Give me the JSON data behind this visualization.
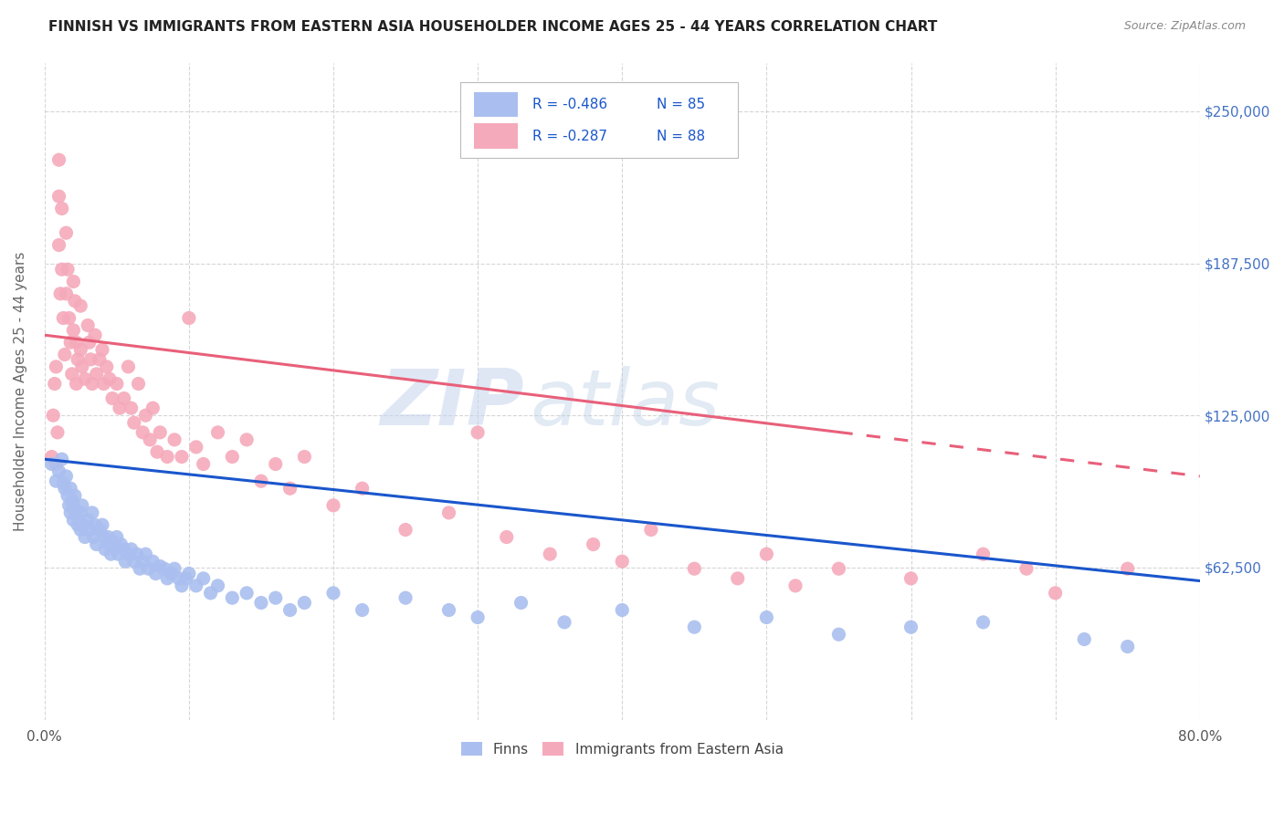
{
  "title": "FINNISH VS IMMIGRANTS FROM EASTERN ASIA HOUSEHOLDER INCOME AGES 25 - 44 YEARS CORRELATION CHART",
  "source": "Source: ZipAtlas.com",
  "ylabel": "Householder Income Ages 25 - 44 years",
  "ytick_values": [
    62500,
    125000,
    187500,
    250000
  ],
  "ymin": 0,
  "ymax": 270000,
  "xmin": 0.0,
  "xmax": 0.8,
  "legend_r_finns": "-0.486",
  "legend_n_finns": "85",
  "legend_r_immigrants": "-0.287",
  "legend_n_immigrants": "88",
  "color_finns": "#aabfef",
  "color_immigrants": "#f5aabb",
  "color_trendline_finns": "#1a56cc",
  "color_trendline_immigrants": "#e8607a",
  "watermark_zip": "ZIP",
  "watermark_atlas": "atlas",
  "finns_x": [
    0.005,
    0.008,
    0.01,
    0.012,
    0.013,
    0.014,
    0.015,
    0.016,
    0.017,
    0.018,
    0.018,
    0.019,
    0.02,
    0.02,
    0.021,
    0.022,
    0.023,
    0.025,
    0.025,
    0.026,
    0.027,
    0.028,
    0.03,
    0.031,
    0.033,
    0.034,
    0.035,
    0.036,
    0.038,
    0.04,
    0.041,
    0.042,
    0.044,
    0.045,
    0.046,
    0.048,
    0.05,
    0.051,
    0.053,
    0.055,
    0.056,
    0.058,
    0.06,
    0.062,
    0.064,
    0.066,
    0.068,
    0.07,
    0.072,
    0.075,
    0.077,
    0.08,
    0.083,
    0.085,
    0.088,
    0.09,
    0.093,
    0.095,
    0.098,
    0.1,
    0.105,
    0.11,
    0.115,
    0.12,
    0.13,
    0.14,
    0.15,
    0.16,
    0.17,
    0.18,
    0.2,
    0.22,
    0.25,
    0.28,
    0.3,
    0.33,
    0.36,
    0.4,
    0.45,
    0.5,
    0.55,
    0.6,
    0.65,
    0.72,
    0.75
  ],
  "finns_y": [
    105000,
    98000,
    102000,
    107000,
    97000,
    95000,
    100000,
    92000,
    88000,
    95000,
    85000,
    90000,
    88000,
    82000,
    92000,
    85000,
    80000,
    85000,
    78000,
    88000,
    80000,
    75000,
    82000,
    78000,
    85000,
    75000,
    80000,
    72000,
    78000,
    80000,
    75000,
    70000,
    75000,
    72000,
    68000,
    73000,
    75000,
    68000,
    72000,
    70000,
    65000,
    68000,
    70000,
    65000,
    68000,
    62000,
    65000,
    68000,
    62000,
    65000,
    60000,
    63000,
    62000,
    58000,
    60000,
    62000,
    58000,
    55000,
    58000,
    60000,
    55000,
    58000,
    52000,
    55000,
    50000,
    52000,
    48000,
    50000,
    45000,
    48000,
    52000,
    45000,
    50000,
    45000,
    42000,
    48000,
    40000,
    45000,
    38000,
    42000,
    35000,
    38000,
    40000,
    33000,
    30000
  ],
  "immigrants_x": [
    0.005,
    0.006,
    0.007,
    0.008,
    0.008,
    0.009,
    0.01,
    0.01,
    0.01,
    0.011,
    0.012,
    0.012,
    0.013,
    0.014,
    0.015,
    0.015,
    0.016,
    0.017,
    0.018,
    0.019,
    0.02,
    0.02,
    0.021,
    0.022,
    0.022,
    0.023,
    0.025,
    0.025,
    0.026,
    0.028,
    0.03,
    0.031,
    0.032,
    0.033,
    0.035,
    0.036,
    0.038,
    0.04,
    0.041,
    0.043,
    0.045,
    0.047,
    0.05,
    0.052,
    0.055,
    0.058,
    0.06,
    0.062,
    0.065,
    0.068,
    0.07,
    0.073,
    0.075,
    0.078,
    0.08,
    0.085,
    0.09,
    0.095,
    0.1,
    0.105,
    0.11,
    0.12,
    0.13,
    0.14,
    0.15,
    0.16,
    0.17,
    0.18,
    0.2,
    0.22,
    0.25,
    0.28,
    0.3,
    0.32,
    0.35,
    0.38,
    0.4,
    0.42,
    0.45,
    0.48,
    0.5,
    0.52,
    0.55,
    0.6,
    0.65,
    0.68,
    0.7,
    0.75
  ],
  "immigrants_y": [
    108000,
    125000,
    138000,
    145000,
    105000,
    118000,
    230000,
    215000,
    195000,
    175000,
    210000,
    185000,
    165000,
    150000,
    200000,
    175000,
    185000,
    165000,
    155000,
    142000,
    180000,
    160000,
    172000,
    155000,
    138000,
    148000,
    170000,
    152000,
    145000,
    140000,
    162000,
    155000,
    148000,
    138000,
    158000,
    142000,
    148000,
    152000,
    138000,
    145000,
    140000,
    132000,
    138000,
    128000,
    132000,
    145000,
    128000,
    122000,
    138000,
    118000,
    125000,
    115000,
    128000,
    110000,
    118000,
    108000,
    115000,
    108000,
    165000,
    112000,
    105000,
    118000,
    108000,
    115000,
    98000,
    105000,
    95000,
    108000,
    88000,
    95000,
    78000,
    85000,
    118000,
    75000,
    68000,
    72000,
    65000,
    78000,
    62000,
    58000,
    68000,
    55000,
    62000,
    58000,
    68000,
    62000,
    52000,
    62000
  ]
}
